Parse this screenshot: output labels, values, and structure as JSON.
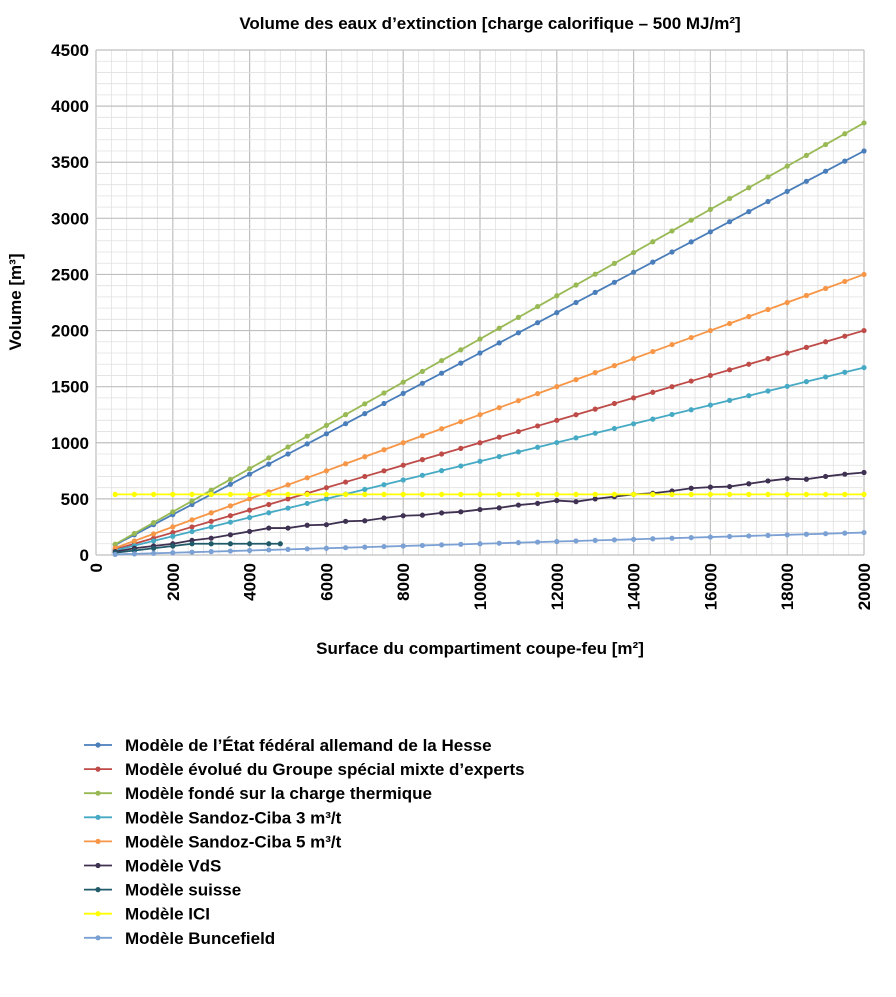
{
  "chart_data": {
    "type": "line",
    "title": "Volume des eaux d’extinction [charge calorifique – 500 MJ/m²]",
    "xlabel": "Surface du compartiment coupe-feu [m²]",
    "ylabel": "Volume [m³]",
    "xlim": [
      0,
      20000
    ],
    "ylim": [
      0,
      4500
    ],
    "xticks": [
      "0",
      "2000",
      "4000",
      "6000",
      "8000",
      "10000",
      "12000",
      "14000",
      "16000",
      "18000",
      "20000"
    ],
    "yticks": [
      "0",
      "500",
      "1000",
      "1500",
      "2000",
      "2500",
      "3000",
      "3500",
      "4000",
      "4500"
    ],
    "grid": true,
    "legend_position": "bottom",
    "series": [
      {
        "name": "Modèle de l’État fédéral allemand de la Hesse",
        "color": "#4a7ebb",
        "x_start": 500,
        "x_end": 20000,
        "y_start": 90,
        "y_end": 3600
      },
      {
        "name": "Modèle évolué du Groupe spécial mixte d’experts",
        "color": "#be4b48",
        "x_start": 500,
        "x_end": 20000,
        "y_start": 50,
        "y_end": 2000
      },
      {
        "name": "Modèle fondé sur la charge thermique",
        "color": "#98b954",
        "x_start": 500,
        "x_end": 20000,
        "y_start": 96,
        "y_end": 3850
      },
      {
        "name": "Modèle Sandoz-Ciba 3 m³/t",
        "color": "#46aac5",
        "x_start": 500,
        "x_end": 20000,
        "y_start": 42,
        "y_end": 1670
      },
      {
        "name": "Modèle Sandoz-Ciba 5 m³/t",
        "color": "#f79646",
        "x_start": 500,
        "x_end": 20000,
        "y_start": 63,
        "y_end": 2500
      },
      {
        "name": "Modèle VdS",
        "color": "#3f3151",
        "x_start": 500,
        "x_end": 20000,
        "points": [
          [
            500,
            30
          ],
          [
            1000,
            60
          ],
          [
            1500,
            80
          ],
          [
            2000,
            100
          ],
          [
            2500,
            130
          ],
          [
            3000,
            150
          ],
          [
            3500,
            180
          ],
          [
            4000,
            210
          ],
          [
            4500,
            240
          ],
          [
            5000,
            240
          ],
          [
            5500,
            265
          ],
          [
            6000,
            270
          ],
          [
            6500,
            300
          ],
          [
            7000,
            305
          ],
          [
            7500,
            330
          ],
          [
            8000,
            350
          ],
          [
            8500,
            355
          ],
          [
            9000,
            375
          ],
          [
            9500,
            385
          ],
          [
            10000,
            405
          ],
          [
            10500,
            420
          ],
          [
            11000,
            445
          ],
          [
            11500,
            460
          ],
          [
            12000,
            485
          ],
          [
            12500,
            475
          ],
          [
            13000,
            500
          ],
          [
            13500,
            520
          ],
          [
            14000,
            540
          ],
          [
            14500,
            550
          ],
          [
            15000,
            570
          ],
          [
            15500,
            595
          ],
          [
            16000,
            605
          ],
          [
            16500,
            610
          ],
          [
            17000,
            635
          ],
          [
            17500,
            660
          ],
          [
            18000,
            680
          ],
          [
            18500,
            675
          ],
          [
            19000,
            700
          ],
          [
            19500,
            720
          ],
          [
            20000,
            735
          ]
        ]
      },
      {
        "name": "Modèle suisse",
        "color": "#215a69",
        "x_start": 500,
        "x_end": 4800,
        "points": [
          [
            500,
            20
          ],
          [
            1000,
            40
          ],
          [
            1500,
            60
          ],
          [
            2000,
            80
          ],
          [
            2500,
            100
          ],
          [
            3000,
            100
          ],
          [
            3500,
            100
          ],
          [
            4000,
            100
          ],
          [
            4500,
            100
          ],
          [
            4800,
            100
          ]
        ]
      },
      {
        "name": "Modèle ICI",
        "color": "#ffff00",
        "x_start": 500,
        "x_end": 20000,
        "y_start": 540,
        "y_end": 540
      },
      {
        "name": "Modèle Buncefield",
        "color": "#7ba0d4",
        "x_start": 500,
        "x_end": 20000,
        "y_start": 5,
        "y_end": 200
      }
    ]
  }
}
